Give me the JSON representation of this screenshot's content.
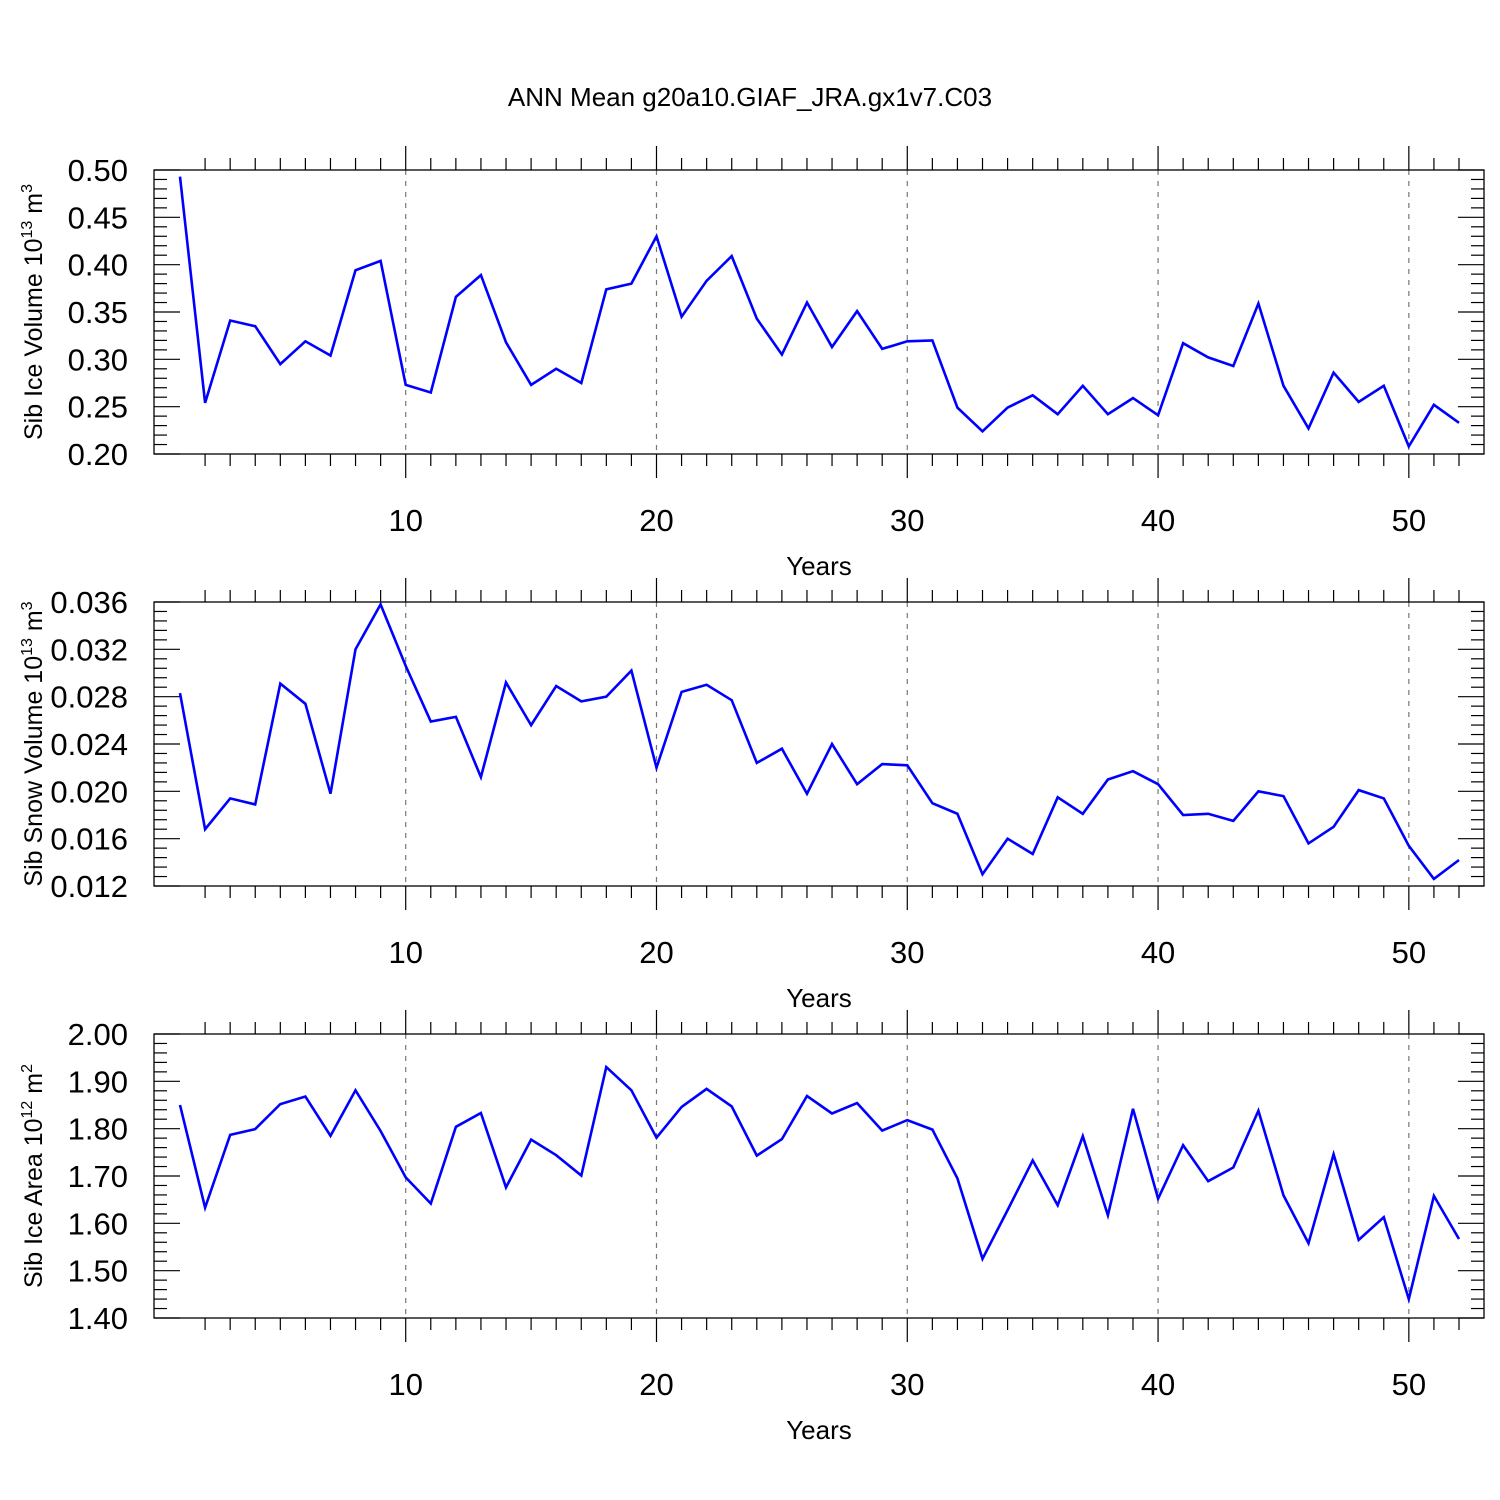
{
  "title": "ANN Mean g20a10.GIAF_JRA.gx1v7.C03",
  "colors": {
    "line": "#0000ff",
    "grid": "#777777",
    "axis": "#000000"
  },
  "chart_data": [
    {
      "type": "line",
      "ylabel": "Sib Ice Volume 10",
      "ylabel_exp": "13",
      "ylabel_unit": " m",
      "ylabel_unit_exp": "3",
      "xlabel": "Years",
      "xlim": [
        1,
        52
      ],
      "ylim": [
        0.2,
        0.5
      ],
      "yticks": [
        "0.20",
        "0.25",
        "0.30",
        "0.35",
        "0.40",
        "0.45",
        "0.50"
      ],
      "xticks": [
        "10",
        "20",
        "30",
        "40",
        "50"
      ],
      "grid": "vertical dashed at major x ticks",
      "x": [
        1,
        2,
        3,
        4,
        5,
        6,
        7,
        8,
        9,
        10,
        11,
        12,
        13,
        14,
        15,
        16,
        17,
        18,
        19,
        20,
        21,
        22,
        23,
        24,
        25,
        26,
        27,
        28,
        29,
        30,
        31,
        32,
        33,
        34,
        35,
        36,
        37,
        38,
        39,
        40,
        41,
        42,
        43,
        44,
        45,
        46,
        47,
        48,
        49,
        50,
        51,
        52
      ],
      "values": [
        0.493,
        0.254,
        0.341,
        0.335,
        0.295,
        0.319,
        0.304,
        0.394,
        0.404,
        0.273,
        0.265,
        0.366,
        0.389,
        0.318,
        0.273,
        0.29,
        0.275,
        0.374,
        0.38,
        0.43,
        0.345,
        0.383,
        0.409,
        0.343,
        0.305,
        0.36,
        0.313,
        0.351,
        0.311,
        0.319,
        0.32,
        0.249,
        0.224,
        0.249,
        0.262,
        0.242,
        0.272,
        0.242,
        0.259,
        0.241,
        0.317,
        0.302,
        0.293,
        0.359,
        0.272,
        0.227,
        0.286,
        0.255,
        0.272,
        0.208,
        0.252,
        0.233
      ]
    },
    {
      "type": "line",
      "ylabel": "Sib Snow Volume 10",
      "ylabel_exp": "13",
      "ylabel_unit": " m",
      "ylabel_unit_exp": "3",
      "xlabel": "Years",
      "xlim": [
        1,
        52
      ],
      "ylim": [
        0.012,
        0.036
      ],
      "yticks": [
        "0.012",
        "0.016",
        "0.020",
        "0.024",
        "0.028",
        "0.032",
        "0.036"
      ],
      "xticks": [
        "10",
        "20",
        "30",
        "40",
        "50"
      ],
      "grid": "vertical dashed at major x ticks",
      "x": [
        1,
        2,
        3,
        4,
        5,
        6,
        7,
        8,
        9,
        10,
        11,
        12,
        13,
        14,
        15,
        16,
        17,
        18,
        19,
        20,
        21,
        22,
        23,
        24,
        25,
        26,
        27,
        28,
        29,
        30,
        31,
        32,
        33,
        34,
        35,
        36,
        37,
        38,
        39,
        40,
        41,
        42,
        43,
        44,
        45,
        46,
        47,
        48,
        49,
        50,
        51,
        52
      ],
      "values": [
        0.0283,
        0.0168,
        0.0194,
        0.0189,
        0.0291,
        0.0274,
        0.0198,
        0.032,
        0.0358,
        0.0306,
        0.0259,
        0.0263,
        0.0212,
        0.0292,
        0.0256,
        0.0289,
        0.0276,
        0.028,
        0.0302,
        0.022,
        0.0284,
        0.029,
        0.0277,
        0.0224,
        0.0236,
        0.0198,
        0.024,
        0.0206,
        0.0223,
        0.0222,
        0.019,
        0.0181,
        0.013,
        0.016,
        0.0147,
        0.0195,
        0.0181,
        0.021,
        0.0217,
        0.0206,
        0.018,
        0.0181,
        0.0175,
        0.02,
        0.0196,
        0.0156,
        0.017,
        0.0201,
        0.0194,
        0.0154,
        0.0126,
        0.0142
      ]
    },
    {
      "type": "line",
      "ylabel": "Sib Ice Area 10",
      "ylabel_exp": "12",
      "ylabel_unit": " m",
      "ylabel_unit_exp": "2",
      "xlabel": "Years",
      "xlim": [
        1,
        52
      ],
      "ylim": [
        1.4,
        2.0
      ],
      "yticks": [
        "1.40",
        "1.50",
        "1.60",
        "1.70",
        "1.80",
        "1.90",
        "2.00"
      ],
      "xticks": [
        "10",
        "20",
        "30",
        "40",
        "50"
      ],
      "grid": "vertical dashed at major x ticks",
      "x": [
        1,
        2,
        3,
        4,
        5,
        6,
        7,
        8,
        9,
        10,
        11,
        12,
        13,
        14,
        15,
        16,
        17,
        18,
        19,
        20,
        21,
        22,
        23,
        24,
        25,
        26,
        27,
        28,
        29,
        30,
        31,
        32,
        33,
        34,
        35,
        36,
        37,
        38,
        39,
        40,
        41,
        42,
        43,
        44,
        45,
        46,
        47,
        48,
        49,
        50,
        51,
        52
      ],
      "values": [
        1.85,
        1.633,
        1.787,
        1.799,
        1.852,
        1.868,
        1.785,
        1.881,
        1.795,
        1.697,
        1.642,
        1.804,
        1.833,
        1.676,
        1.777,
        1.744,
        1.701,
        1.93,
        1.881,
        1.781,
        1.846,
        1.884,
        1.847,
        1.743,
        1.778,
        1.869,
        1.832,
        1.854,
        1.796,
        1.818,
        1.798,
        1.695,
        1.525,
        1.628,
        1.733,
        1.638,
        1.784,
        1.617,
        1.842,
        1.652,
        1.765,
        1.689,
        1.718,
        1.838,
        1.659,
        1.558,
        1.746,
        1.565,
        1.613,
        1.44,
        1.658,
        1.567
      ]
    }
  ]
}
